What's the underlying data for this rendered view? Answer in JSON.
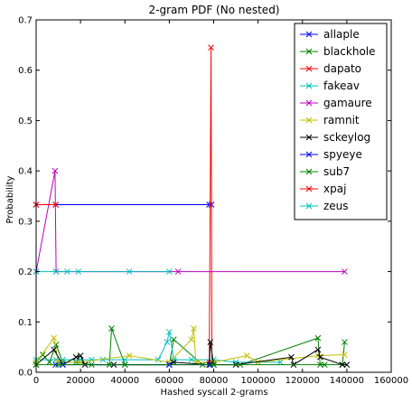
{
  "chart_data": {
    "type": "line",
    "title": "2-gram PDF (No nested)",
    "xlabel": "Hashed syscall 2-grams",
    "ylabel": "Probability",
    "xlim": [
      0,
      160000
    ],
    "ylim": [
      0,
      0.7
    ],
    "xticks": [
      0,
      20000,
      40000,
      60000,
      80000,
      100000,
      120000,
      140000,
      160000
    ],
    "yticks": [
      0.0,
      0.1,
      0.2,
      0.3,
      0.4,
      0.5,
      0.6,
      0.7
    ],
    "xtick_labels": [
      "0",
      "20000",
      "40000",
      "60000",
      "80000",
      "100000",
      "120000",
      "140000",
      "160000"
    ],
    "ytick_labels": [
      "0.0",
      "0.1",
      "0.2",
      "0.3",
      "0.4",
      "0.5",
      "0.6",
      "0.7"
    ],
    "grid": false,
    "legend_position": "top-right",
    "marker": "x",
    "series": [
      {
        "name": "allaple",
        "color": "#0000ff",
        "x": [
          0,
          8800,
          78000,
          79000
        ],
        "y": [
          0.333,
          0.333,
          0.333,
          0.333
        ]
      },
      {
        "name": "blackhole",
        "color": "#008000",
        "x": [
          0,
          3000,
          6000,
          9000,
          12000,
          18000,
          25000,
          33000,
          34000,
          40000,
          60000,
          62000,
          75000,
          80000,
          92000,
          127000,
          128000,
          138000,
          139000
        ],
        "y": [
          0.02,
          0.035,
          0.02,
          0.055,
          0.02,
          0.02,
          0.015,
          0.015,
          0.087,
          0.015,
          0.015,
          0.065,
          0.015,
          0.015,
          0.015,
          0.068,
          0.015,
          0.015,
          0.06
        ]
      },
      {
        "name": "dapato",
        "color": "#ff0000",
        "x": [
          78000,
          78800,
          79200,
          80000
        ],
        "y": [
          0.02,
          0.645,
          0.02,
          0.02
        ]
      },
      {
        "name": "fakeav",
        "color": "#00bfbf",
        "x": [
          0,
          9000,
          12000,
          20000,
          25000,
          30000,
          40000,
          55000,
          59000,
          60000,
          62000,
          70000,
          80000,
          90000,
          100000,
          110000
        ],
        "y": [
          0.025,
          0.025,
          0.025,
          0.025,
          0.025,
          0.025,
          0.025,
          0.025,
          0.06,
          0.08,
          0.025,
          0.025,
          0.025,
          0.02,
          0.02,
          0.02
        ]
      },
      {
        "name": "gamaure",
        "color": "#bf00bf",
        "x": [
          0,
          8500,
          9000,
          64000,
          139000
        ],
        "y": [
          0.2,
          0.4,
          0.2,
          0.2,
          0.2
        ]
      },
      {
        "name": "ramnit",
        "color": "#bfbf00",
        "x": [
          0,
          8000,
          10000,
          20000,
          42000,
          60000,
          70000,
          71000,
          72000,
          80000,
          95000,
          100000,
          127000,
          139000
        ],
        "y": [
          0.02,
          0.068,
          0.02,
          0.02,
          0.033,
          0.02,
          0.065,
          0.087,
          0.02,
          0.02,
          0.033,
          0.02,
          0.033,
          0.035
        ]
      },
      {
        "name": "sckeylog",
        "color": "#000000",
        "x": [
          0,
          8000,
          12000,
          18000,
          20000,
          22000,
          35000,
          60000,
          62000,
          78000,
          78500,
          80000,
          90000,
          115000,
          116000,
          127000,
          128000,
          138000,
          140000
        ],
        "y": [
          0.015,
          0.045,
          0.015,
          0.03,
          0.033,
          0.015,
          0.015,
          0.015,
          0.02,
          0.015,
          0.06,
          0.015,
          0.015,
          0.03,
          0.015,
          0.045,
          0.03,
          0.015,
          0.015
        ]
      },
      {
        "name": "spyeye",
        "color": "#0000ff",
        "x": [
          8800,
          12000,
          60000,
          78500
        ],
        "y": [
          0.015,
          0.015,
          0.015,
          0.015
        ]
      },
      {
        "name": "sub7",
        "color": "#008000",
        "x": [
          0,
          10000,
          40000,
          80000,
          130000
        ],
        "y": [
          0.015,
          0.015,
          0.015,
          0.015,
          0.015
        ]
      },
      {
        "name": "xpaj",
        "color": "#ff0000",
        "x": [
          0,
          8800
        ],
        "y": [
          0.333,
          0.333
        ]
      },
      {
        "name": "zeus",
        "color": "#00bfbf",
        "x": [
          0,
          9000,
          14000,
          19000,
          42000,
          60000
        ],
        "y": [
          0.2,
          0.2,
          0.2,
          0.2,
          0.2,
          0.2
        ]
      }
    ]
  }
}
